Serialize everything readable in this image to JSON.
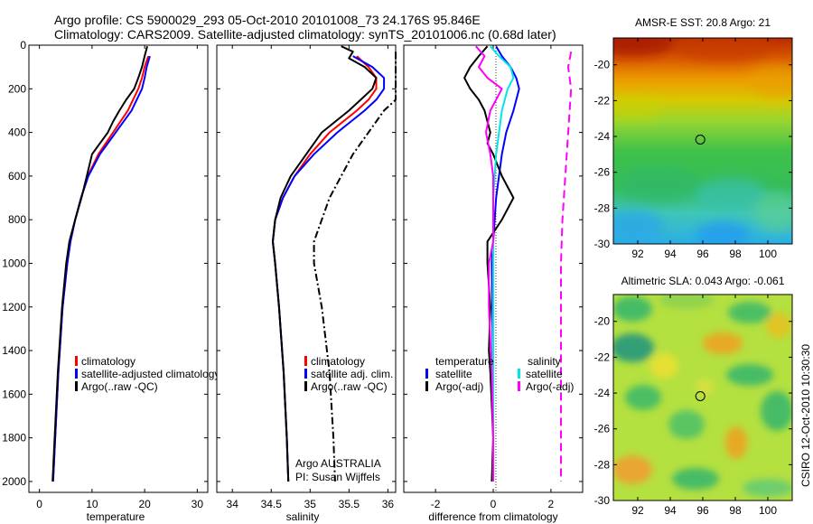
{
  "title": {
    "line1": "Argo profile: CS 5900029_293 05-Oct-2010 20101008_73 24.176S 95.846E",
    "line2": "Climatology: CARS2009. Satellite-adjusted climatology: synTS_20101006.nc (0.68d later)"
  },
  "stamp": "CSIRO 12-Oct-2010 10:30:30",
  "colors": {
    "red": "#ff0000",
    "blue": "#0000ff",
    "black": "#000000",
    "cyan": "#00e5e5",
    "magenta": "#ff00ff"
  },
  "chart_data": [
    {
      "type": "line",
      "name": "temperature",
      "xlabel": "temperature",
      "ylabel": "",
      "xlim": [
        -2,
        32
      ],
      "ylim": [
        2050,
        0
      ],
      "xticks": [
        0,
        10,
        20,
        30
      ],
      "yticks": [
        0,
        200,
        400,
        600,
        800,
        1000,
        1200,
        1400,
        1600,
        1800,
        2000
      ],
      "legend": [
        "climatology",
        "satellite-adjusted climatology",
        "Argo(..raw -QC)"
      ],
      "series": [
        {
          "name": "climatology",
          "color": "red",
          "dash": "",
          "depth": [
            50,
            100,
            150,
            200,
            300,
            400,
            500,
            600,
            700,
            800,
            900,
            1000,
            1200,
            1500,
            1800,
            2000
          ],
          "values": [
            20.7,
            20.0,
            19.5,
            18.8,
            16.8,
            14.0,
            11.2,
            9.2,
            7.9,
            6.8,
            5.9,
            5.3,
            4.4,
            3.6,
            3.0,
            2.6
          ]
        },
        {
          "name": "satellite-adjusted climatology",
          "color": "blue",
          "dash": "",
          "depth": [
            50,
            100,
            150,
            200,
            300,
            400,
            500,
            600,
            700,
            800,
            900,
            1000,
            1200,
            1500,
            1800,
            2000
          ],
          "values": [
            21.0,
            20.4,
            20.0,
            19.5,
            17.5,
            14.5,
            11.5,
            9.3,
            7.9,
            6.8,
            5.9,
            5.3,
            4.4,
            3.6,
            3.0,
            2.6
          ]
        },
        {
          "name": "Argo(..raw -QC)",
          "color": "black",
          "dash": "",
          "depth": [
            5,
            50,
            100,
            150,
            200,
            250,
            300,
            350,
            400,
            450,
            500,
            600,
            700,
            800,
            900,
            1000,
            1200,
            1500,
            1800,
            2000
          ],
          "values": [
            20.5,
            20.0,
            19.5,
            18.8,
            18.0,
            16.5,
            15.2,
            14.0,
            13.0,
            11.5,
            10.0,
            9.0,
            8.0,
            6.8,
            5.7,
            5.1,
            4.3,
            3.5,
            2.9,
            2.5
          ]
        }
      ]
    },
    {
      "type": "line",
      "name": "salinity",
      "xlabel": "salinity",
      "ylabel": "",
      "xlim": [
        33.8,
        36.1
      ],
      "ylim": [
        2050,
        0
      ],
      "xticks": [
        34,
        34.5,
        35,
        35.5,
        36
      ],
      "legend": [
        "climatology",
        "satellite adj. clim.",
        "Argo(..raw -QC)"
      ],
      "annotation": [
        "Argo AUSTRALIA",
        "PI: Susan Wijffels"
      ],
      "series": [
        {
          "name": "climatology",
          "color": "red",
          "dash": "",
          "depth": [
            50,
            100,
            150,
            200,
            250,
            300,
            400,
            500,
            600,
            700,
            800,
            900,
            1000,
            1200,
            1500,
            1800,
            2000
          ],
          "values": [
            35.6,
            35.75,
            35.85,
            35.85,
            35.75,
            35.6,
            35.25,
            35.0,
            34.8,
            34.65,
            34.55,
            34.52,
            34.55,
            34.6,
            34.66,
            34.7,
            34.72
          ]
        },
        {
          "name": "satellite adj. clim.",
          "color": "blue",
          "dash": "",
          "depth": [
            50,
            100,
            150,
            200,
            250,
            300,
            400,
            500,
            600,
            700,
            800,
            900,
            1000,
            1200,
            1500,
            1800,
            2000
          ],
          "values": [
            35.55,
            35.8,
            35.95,
            35.95,
            35.85,
            35.7,
            35.35,
            35.05,
            34.8,
            34.65,
            34.55,
            34.52,
            34.55,
            34.6,
            34.66,
            34.7,
            34.72
          ]
        },
        {
          "name": "Argo(..raw -QC)",
          "color": "black",
          "dash": "",
          "depth": [
            5,
            30,
            60,
            100,
            150,
            200,
            250,
            300,
            400,
            500,
            600,
            700,
            800,
            900,
            1000,
            1200,
            1500,
            1800,
            2000
          ],
          "values": [
            35.4,
            35.55,
            35.5,
            35.7,
            35.85,
            35.8,
            35.65,
            35.5,
            35.15,
            34.95,
            34.75,
            34.62,
            34.55,
            34.52,
            34.55,
            34.6,
            34.66,
            34.7,
            34.72
          ]
        },
        {
          "name": "Argo(..raw -QC) raw",
          "color": "black",
          "dash": "8,3,2,3",
          "depth": [
            30,
            250,
            300,
            400,
            500,
            600,
            700,
            800,
            900,
            1000,
            1200,
            1500,
            1800,
            2000
          ],
          "values": [
            36.1,
            36.1,
            35.95,
            35.75,
            35.55,
            35.4,
            35.25,
            35.15,
            35.05,
            35.05,
            35.15,
            35.25,
            35.3,
            35.32
          ]
        }
      ]
    },
    {
      "type": "line",
      "name": "difference",
      "xlabel": "difference from climatology",
      "ylabel": "",
      "xlim": [
        -3.1,
        3.1
      ],
      "ylim": [
        2050,
        0
      ],
      "xticks": [
        -2,
        0,
        2
      ],
      "legend_left_title": "temperature",
      "legend_right_title": "salinity",
      "legend": [
        "satellite",
        "Argo(-adj)",
        "satellite",
        "Argo(-adj)"
      ],
      "series": [
        {
          "name": "temperature satellite",
          "color": "blue",
          "dash": "",
          "depth": [
            5,
            50,
            100,
            150,
            200,
            300,
            400,
            500,
            600,
            700,
            800,
            900,
            1000,
            1500,
            2000
          ],
          "values": [
            0.1,
            0.3,
            0.6,
            0.8,
            0.9,
            0.7,
            0.45,
            0.3,
            0.2,
            0.1,
            0.05,
            0.0,
            -0.05,
            0.0,
            0.0
          ]
        },
        {
          "name": "temperature Argo(-adj)",
          "color": "black",
          "dash": "",
          "depth": [
            5,
            50,
            100,
            150,
            200,
            250,
            300,
            350,
            400,
            450,
            500,
            600,
            700,
            800,
            900,
            1000,
            1200,
            1400,
            1500,
            1800,
            2000
          ],
          "values": [
            -0.2,
            -0.5,
            -0.8,
            -1.0,
            -0.8,
            -0.5,
            -0.3,
            -0.2,
            -0.1,
            -0.2,
            0.0,
            0.3,
            0.7,
            0.3,
            -0.2,
            -0.2,
            -0.1,
            -0.15,
            -0.1,
            0.0,
            -0.05
          ]
        },
        {
          "name": "salinity satellite",
          "color": "cyan",
          "dash": "",
          "depth": [
            5,
            50,
            100,
            150,
            200,
            300,
            400,
            500,
            600,
            700,
            800,
            900,
            1000,
            1500,
            2000
          ],
          "values": [
            -0.1,
            0.2,
            0.6,
            0.7,
            0.5,
            0.3,
            0.2,
            0.1,
            0.05,
            0.0,
            0.0,
            0.0,
            0.0,
            0.0,
            0.0
          ]
        },
        {
          "name": "salinity Argo(-adj)",
          "color": "magenta",
          "dash": "",
          "depth": [
            5,
            50,
            100,
            150,
            200,
            300,
            400,
            500,
            600,
            700,
            800,
            900,
            1000,
            1200,
            1500,
            1800,
            2000
          ],
          "values": [
            -0.6,
            -0.3,
            -0.5,
            -0.2,
            0.3,
            -0.1,
            -0.25,
            -0.1,
            0.0,
            0.0,
            0.0,
            0.0,
            -0.15,
            -0.15,
            -0.05,
            0.0,
            0.0
          ]
        },
        {
          "name": "salinity raw",
          "color": "magenta",
          "dash": "9,5",
          "depth": [
            30,
            100,
            200,
            400,
            600,
            800,
            1000,
            1200,
            1500,
            1800,
            2000
          ],
          "values": [
            2.7,
            2.6,
            2.7,
            2.6,
            2.5,
            2.4,
            2.35,
            2.35,
            2.35,
            2.35,
            2.35
          ]
        }
      ]
    },
    {
      "type": "heatmap",
      "name": "sst-map",
      "title": "AMSR-E SST: 20.8  Argo: 21",
      "xlim": [
        90.5,
        101.5
      ],
      "ylim": [
        -30,
        -18.5
      ],
      "xticks": [
        92,
        94,
        96,
        98,
        100
      ],
      "yticks": [
        -20,
        -22,
        -24,
        -26,
        -28,
        -30
      ],
      "float_position": {
        "lon": 95.846,
        "lat": -24.176
      }
    },
    {
      "type": "heatmap",
      "name": "sla-map",
      "title": "Altimetric SLA: 0.043  Argo: -0.061",
      "xlim": [
        90.5,
        101.5
      ],
      "ylim": [
        -30,
        -18.5
      ],
      "xticks": [
        92,
        94,
        96,
        98,
        100
      ],
      "yticks": [
        -20,
        -22,
        -24,
        -26,
        -28,
        -30
      ],
      "float_position": {
        "lon": 95.846,
        "lat": -24.176
      }
    }
  ]
}
